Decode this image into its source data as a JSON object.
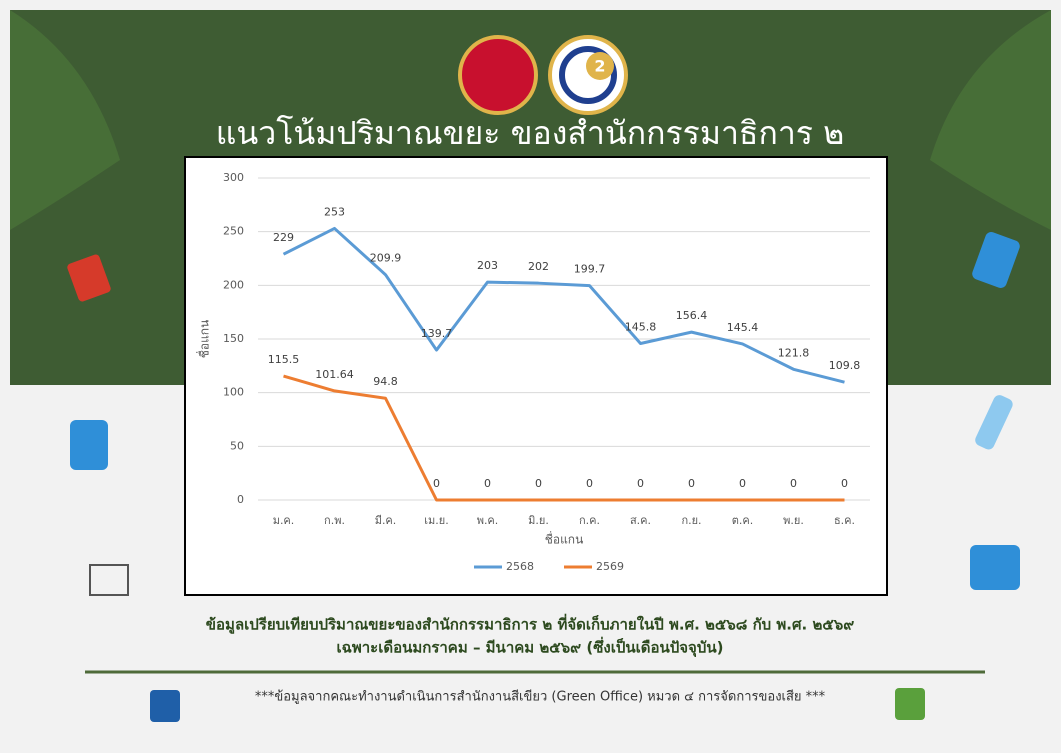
{
  "header": {
    "title": "แนวโน้มปริมาณขยะ ของสำนักกรรมาธิการ ๒",
    "logo_text": "2"
  },
  "chart_data": {
    "type": "line",
    "categories": [
      "ม.ค.",
      "ก.พ.",
      "มี.ค.",
      "เม.ย.",
      "พ.ค.",
      "มิ.ย.",
      "ก.ค.",
      "ส.ค.",
      "ก.ย.",
      "ต.ค.",
      "พ.ย.",
      "ธ.ค."
    ],
    "series": [
      {
        "name": "2568",
        "color": "#5b9bd5",
        "values": [
          229,
          253,
          209.9,
          139.7,
          203,
          202,
          199.7,
          145.8,
          156.4,
          145.4,
          121.8,
          109.8
        ]
      },
      {
        "name": "2569",
        "color": "#ed7d31",
        "values": [
          115.5,
          101.64,
          94.8,
          0,
          0,
          0,
          0,
          0,
          0,
          0,
          0,
          0
        ]
      }
    ],
    "ylim": [
      0,
      300
    ],
    "yticks": [
      0,
      50,
      100,
      150,
      200,
      250,
      300
    ],
    "grid": true,
    "x_label": "ชื่อแกน",
    "y_label": "ชื่อแกน",
    "legend": "bottom"
  },
  "footer": {
    "caption": [
      "ข้อมูลเปรียบเทียบปริมาณขยะของสำนักกรรมาธิการ ๒ ที่จัดเก็บภายในปี พ.ศ. ๒๕๖๘ กับ พ.ศ. ๒๕๖๙",
      "เฉพาะเดือนมกราคม – มีนาคม ๒๕๖๙ (ซึ่งเป็นเดือนปัจจุบัน)"
    ],
    "note": "***ข้อมูลจากคณะทำงานดำเนินการสำนักงานสีเขียว (Green Office) หมวด ๔ การจัดการของเสีย ***"
  }
}
